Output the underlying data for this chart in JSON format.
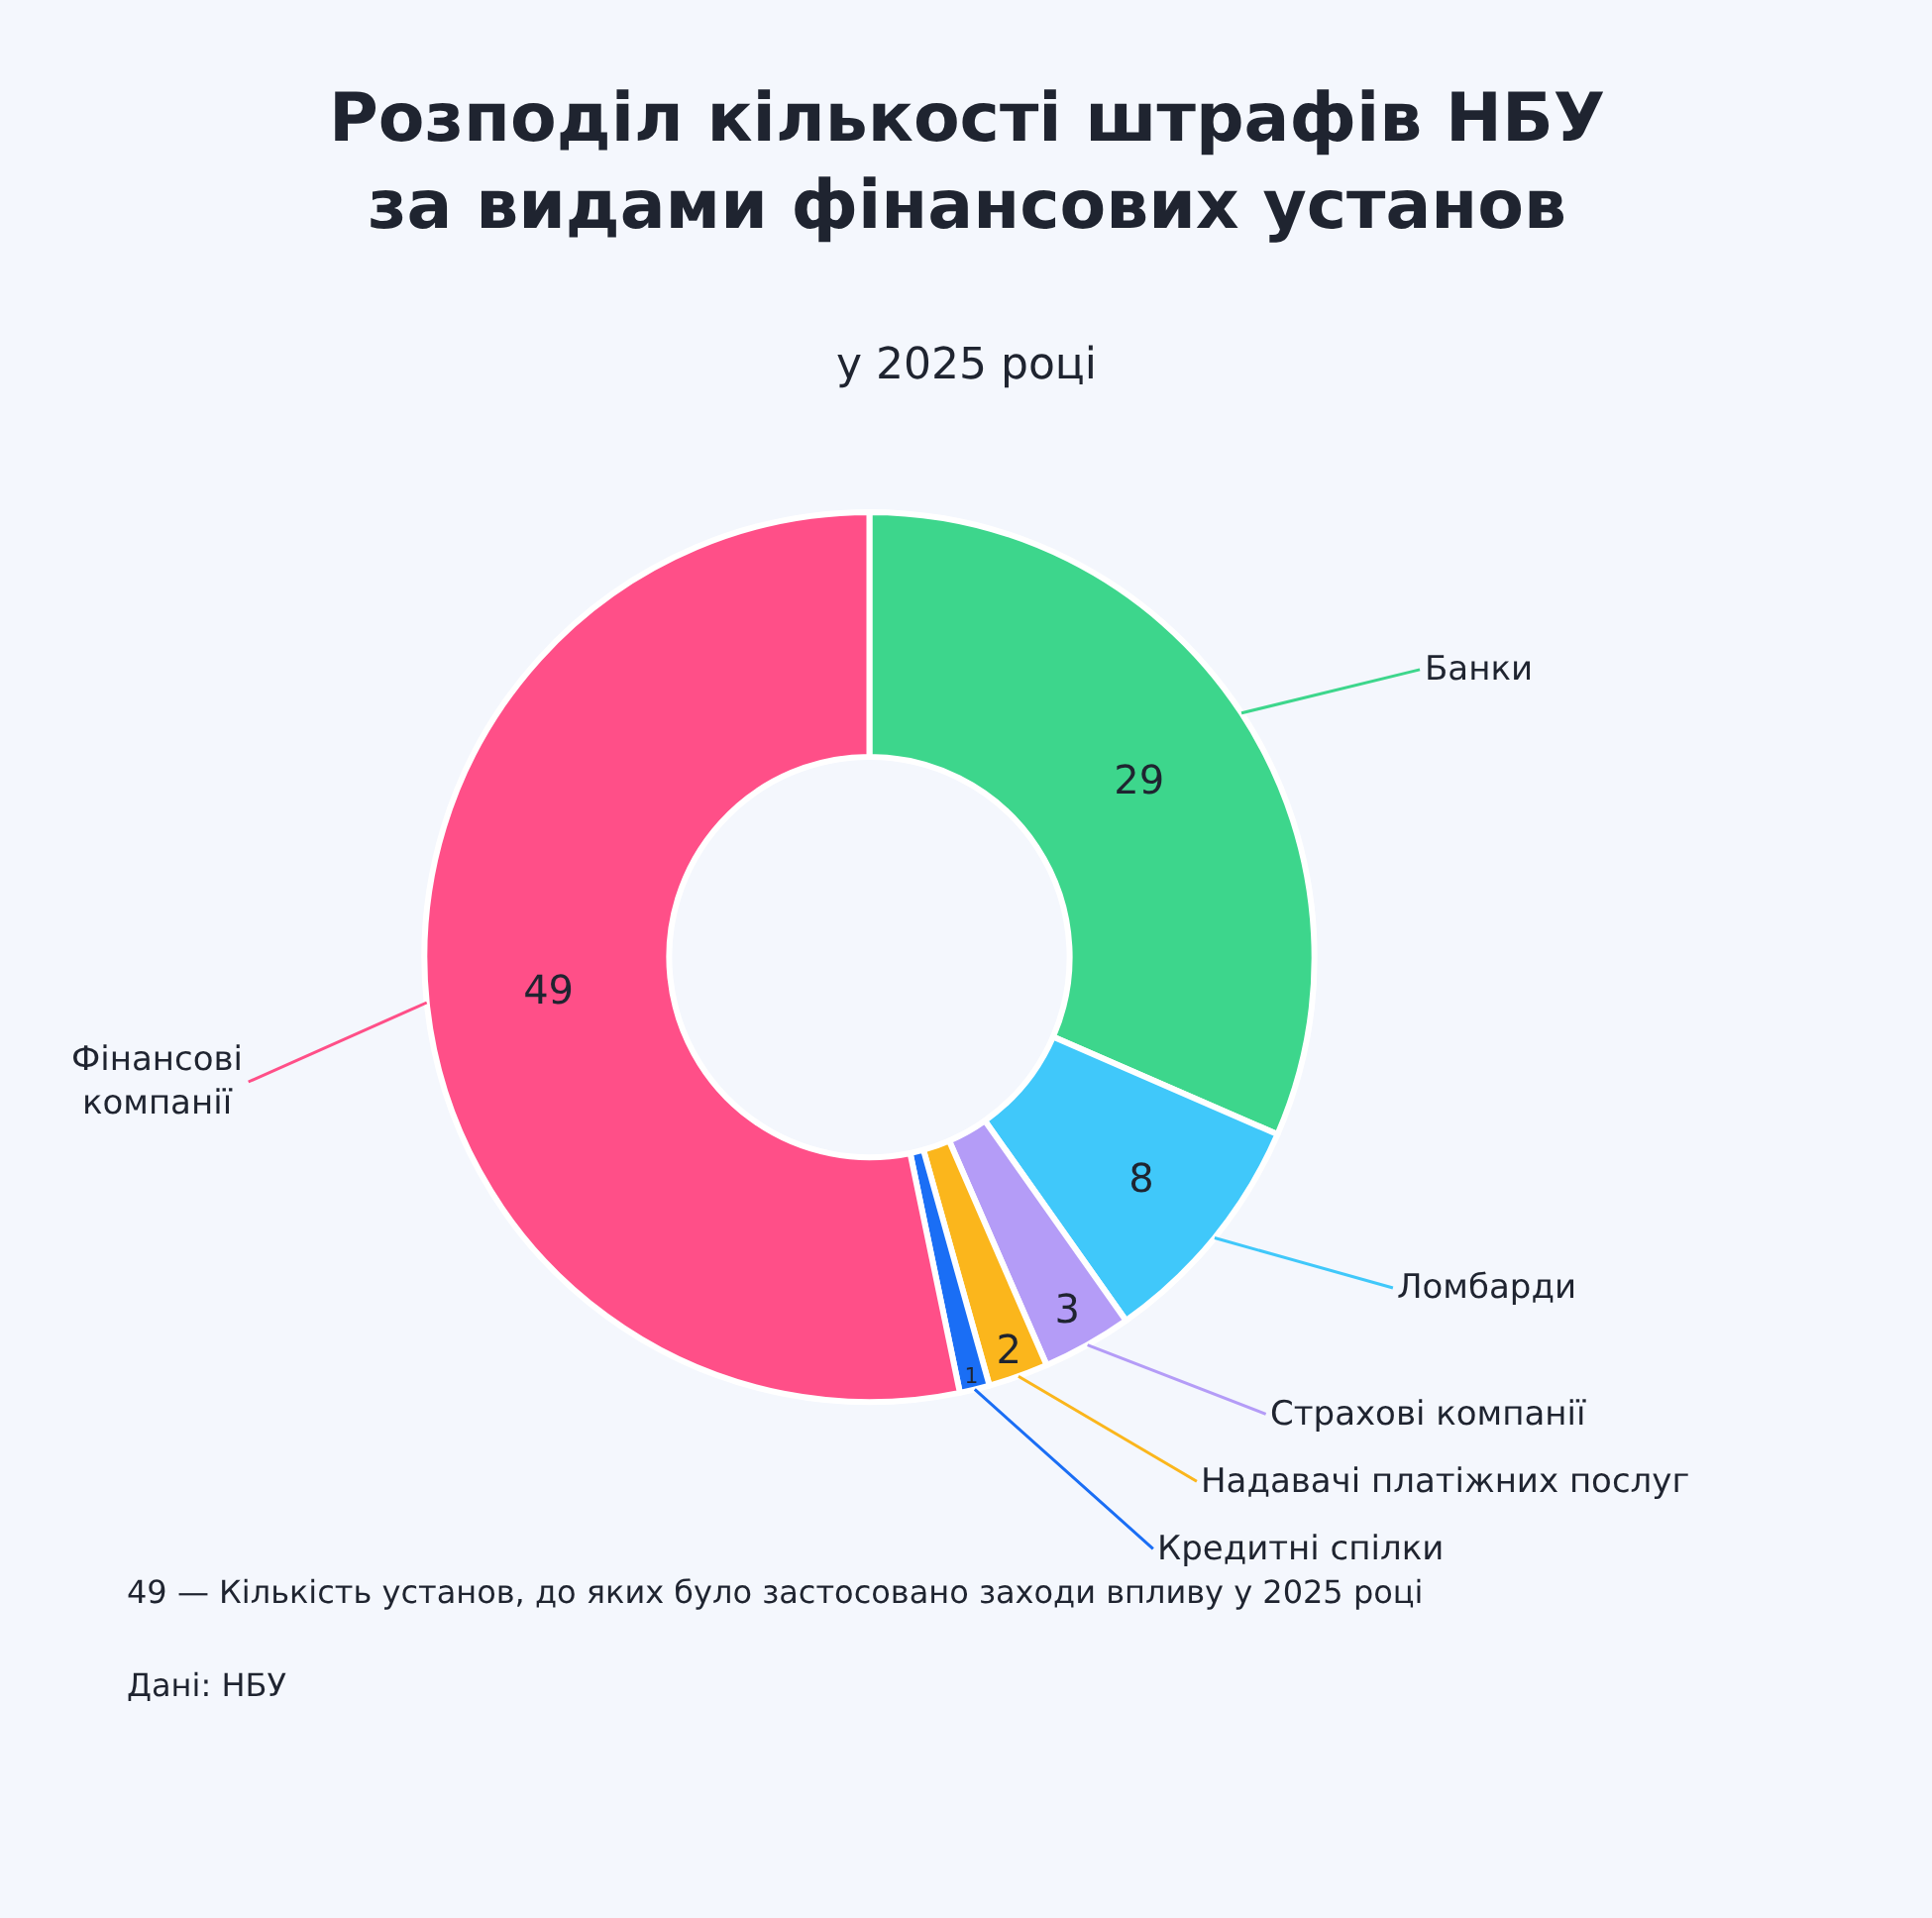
{
  "chart_data": {
    "type": "donut",
    "title": "Розподіл кількості штрафів НБУ\nза видами фінансових установ",
    "subtitle": "у 2025 році",
    "categories": [
      "Банки",
      "Ломбарди",
      "Страхові компанії",
      "Надавачі платіжних послуг",
      "Кредитні спілки",
      "Фінансові\nкомпанії"
    ],
    "values": [
      29,
      8,
      3,
      2,
      1,
      49
    ],
    "colors": [
      "#3dd68c",
      "#40c8fa",
      "#b49cf7",
      "#fbb61c",
      "#1a6ef5",
      "#ff4f88"
    ],
    "data_labels": true,
    "legend": false,
    "annotations": [
      "49 — Кількість установ, до яких було застосовано заходи впливу у 2025 році",
      "Дані: НБУ"
    ]
  }
}
